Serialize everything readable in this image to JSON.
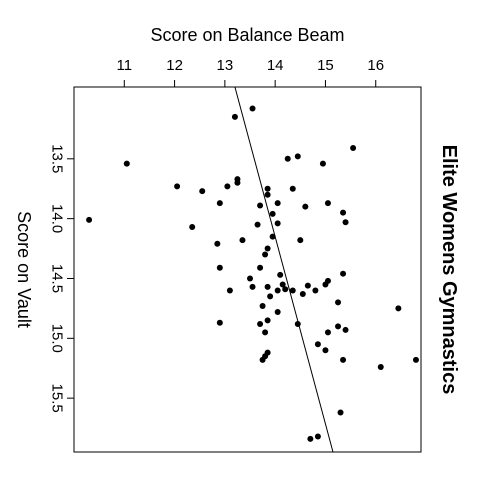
{
  "chart_data": {
    "type": "scatter",
    "title": "Elite Womens Gymnastics",
    "xlabel": "Score on Balance Beam",
    "ylabel": "Score on Vault",
    "xlim": [
      10.0,
      16.9
    ],
    "ylim": [
      12.9,
      15.95
    ],
    "x_reversed": false,
    "y_reversed": true,
    "x_axis_position": "top",
    "y_axis_position": "left",
    "x_ticks": [
      11,
      12,
      13,
      14,
      15,
      16
    ],
    "x_tick_labels": [
      "11",
      "12",
      "13",
      "14",
      "15",
      "16"
    ],
    "y_ticks": [
      13.5,
      14.0,
      14.5,
      15.0,
      15.5
    ],
    "y_tick_labels": [
      "13.5",
      "14.0",
      "14.5",
      "15.0",
      "15.5"
    ],
    "title_position": "right, rotated",
    "grid": false,
    "point_color": "#000000",
    "fit_line": {
      "x1": 13.2,
      "y1": 12.9,
      "x2": 15.15,
      "y2": 15.95
    },
    "points": [
      {
        "x": 13.2,
        "y": 13.15
      },
      {
        "x": 13.55,
        "y": 13.08
      },
      {
        "x": 11.05,
        "y": 13.54
      },
      {
        "x": 14.45,
        "y": 13.48
      },
      {
        "x": 14.25,
        "y": 13.5
      },
      {
        "x": 14.95,
        "y": 13.54
      },
      {
        "x": 15.55,
        "y": 13.41
      },
      {
        "x": 12.05,
        "y": 13.73
      },
      {
        "x": 12.55,
        "y": 13.77
      },
      {
        "x": 13.25,
        "y": 13.67
      },
      {
        "x": 13.25,
        "y": 13.7
      },
      {
        "x": 13.05,
        "y": 13.73
      },
      {
        "x": 13.85,
        "y": 13.75
      },
      {
        "x": 13.85,
        "y": 13.8
      },
      {
        "x": 14.35,
        "y": 13.75
      },
      {
        "x": 12.9,
        "y": 13.87
      },
      {
        "x": 13.7,
        "y": 13.89
      },
      {
        "x": 14.05,
        "y": 13.87
      },
      {
        "x": 14.6,
        "y": 13.9
      },
      {
        "x": 15.05,
        "y": 13.87
      },
      {
        "x": 15.35,
        "y": 13.95
      },
      {
        "x": 10.3,
        "y": 14.01
      },
      {
        "x": 13.95,
        "y": 13.96
      },
      {
        "x": 13.65,
        "y": 14.05
      },
      {
        "x": 14.05,
        "y": 14.04
      },
      {
        "x": 15.4,
        "y": 14.03
      },
      {
        "x": 12.35,
        "y": 14.07
      },
      {
        "x": 13.95,
        "y": 14.15
      },
      {
        "x": 13.35,
        "y": 14.18
      },
      {
        "x": 12.85,
        "y": 14.21
      },
      {
        "x": 13.85,
        "y": 14.25
      },
      {
        "x": 14.5,
        "y": 14.18
      },
      {
        "x": 13.8,
        "y": 14.3
      },
      {
        "x": 12.9,
        "y": 14.41
      },
      {
        "x": 13.7,
        "y": 14.41
      },
      {
        "x": 14.1,
        "y": 14.47
      },
      {
        "x": 13.5,
        "y": 14.5
      },
      {
        "x": 15.35,
        "y": 14.46
      },
      {
        "x": 15.05,
        "y": 14.52
      },
      {
        "x": 15.0,
        "y": 14.55
      },
      {
        "x": 13.1,
        "y": 14.6
      },
      {
        "x": 13.55,
        "y": 14.57
      },
      {
        "x": 13.85,
        "y": 14.57
      },
      {
        "x": 14.15,
        "y": 14.55
      },
      {
        "x": 14.2,
        "y": 14.59
      },
      {
        "x": 14.05,
        "y": 14.6
      },
      {
        "x": 14.35,
        "y": 14.6
      },
      {
        "x": 14.55,
        "y": 14.63
      },
      {
        "x": 14.8,
        "y": 14.6
      },
      {
        "x": 14.65,
        "y": 14.56
      },
      {
        "x": 13.9,
        "y": 14.65
      },
      {
        "x": 13.75,
        "y": 14.73
      },
      {
        "x": 15.25,
        "y": 14.7
      },
      {
        "x": 16.45,
        "y": 14.75
      },
      {
        "x": 14.05,
        "y": 14.78
      },
      {
        "x": 13.85,
        "y": 14.85
      },
      {
        "x": 13.7,
        "y": 14.88
      },
      {
        "x": 12.9,
        "y": 14.87
      },
      {
        "x": 14.45,
        "y": 14.88
      },
      {
        "x": 15.25,
        "y": 14.9
      },
      {
        "x": 15.4,
        "y": 14.93
      },
      {
        "x": 13.8,
        "y": 14.95
      },
      {
        "x": 15.05,
        "y": 14.95
      },
      {
        "x": 14.85,
        "y": 15.05
      },
      {
        "x": 15.0,
        "y": 15.1
      },
      {
        "x": 13.85,
        "y": 15.12
      },
      {
        "x": 13.8,
        "y": 15.15
      },
      {
        "x": 13.75,
        "y": 15.18
      },
      {
        "x": 15.35,
        "y": 15.18
      },
      {
        "x": 16.8,
        "y": 15.18
      },
      {
        "x": 16.1,
        "y": 15.24
      },
      {
        "x": 15.3,
        "y": 15.62
      },
      {
        "x": 14.85,
        "y": 15.82
      },
      {
        "x": 14.7,
        "y": 15.84
      }
    ]
  }
}
